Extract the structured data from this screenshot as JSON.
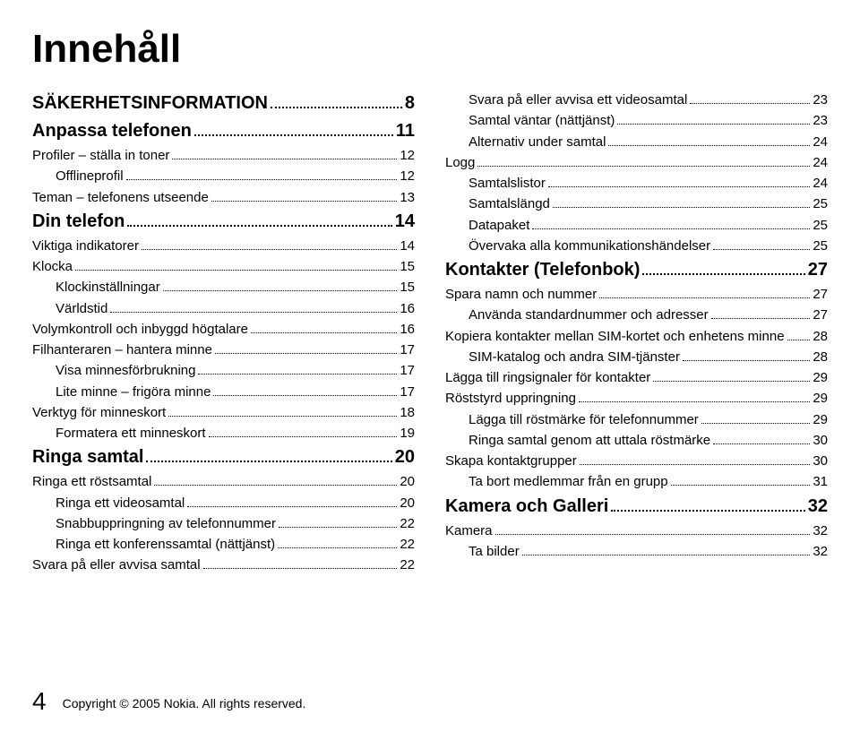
{
  "page_title": "Innehåll",
  "page_number": "4",
  "copyright": "Copyright © 2005 Nokia. All rights reserved.",
  "toc_left": [
    {
      "level": 0,
      "title": "SÄKERHETSINFORMATION",
      "page": "8"
    },
    {
      "level": 0,
      "title": "Anpassa telefonen",
      "page": "11"
    },
    {
      "level": 1,
      "title": "Profiler – ställa in toner",
      "page": "12"
    },
    {
      "level": 2,
      "title": "Offlineprofil",
      "page": "12"
    },
    {
      "level": 1,
      "title": "Teman – telefonens utseende",
      "page": "13"
    },
    {
      "level": 0,
      "title": "Din telefon",
      "page": "14"
    },
    {
      "level": 1,
      "title": "Viktiga indikatorer",
      "page": "14"
    },
    {
      "level": 1,
      "title": "Klocka",
      "page": "15"
    },
    {
      "level": 2,
      "title": "Klockinställningar",
      "page": "15"
    },
    {
      "level": 2,
      "title": "Världstid",
      "page": "16"
    },
    {
      "level": 1,
      "title": "Volymkontroll och inbyggd högtalare",
      "page": "16"
    },
    {
      "level": 1,
      "title": "Filhanteraren – hantera minne",
      "page": "17"
    },
    {
      "level": 2,
      "title": "Visa minnesförbrukning",
      "page": "17"
    },
    {
      "level": 2,
      "title": "Lite minne – frigöra minne",
      "page": "17"
    },
    {
      "level": 1,
      "title": "Verktyg för minneskort",
      "page": "18"
    },
    {
      "level": 2,
      "title": "Formatera ett minneskort",
      "page": "19"
    },
    {
      "level": 0,
      "title": "Ringa samtal",
      "page": "20"
    },
    {
      "level": 1,
      "title": "Ringa ett röstsamtal",
      "page": "20"
    },
    {
      "level": 2,
      "title": "Ringa ett videosamtal",
      "page": "20"
    },
    {
      "level": 2,
      "title": "Snabbuppringning av telefonnummer",
      "page": "22"
    },
    {
      "level": 2,
      "title": "Ringa ett konferenssamtal (nättjänst)",
      "page": "22"
    },
    {
      "level": 1,
      "title": "Svara på eller avvisa samtal",
      "page": "22"
    }
  ],
  "toc_right": [
    {
      "level": 2,
      "title": "Svara på eller avvisa ett videosamtal",
      "page": "23"
    },
    {
      "level": 2,
      "title": "Samtal väntar (nättjänst)",
      "page": "23"
    },
    {
      "level": 2,
      "title": "Alternativ under samtal",
      "page": "24"
    },
    {
      "level": 1,
      "title": "Logg",
      "page": "24"
    },
    {
      "level": 2,
      "title": "Samtalslistor",
      "page": "24"
    },
    {
      "level": 2,
      "title": "Samtalslängd",
      "page": "25"
    },
    {
      "level": 2,
      "title": "Datapaket",
      "page": "25"
    },
    {
      "level": 2,
      "title": "Övervaka alla kommunikationshändelser",
      "page": "25"
    },
    {
      "level": 0,
      "title": "Kontakter (Telefonbok)",
      "page": "27"
    },
    {
      "level": 1,
      "title": "Spara namn och nummer",
      "page": "27"
    },
    {
      "level": 2,
      "title": "Använda standardnummer och adresser",
      "page": "27"
    },
    {
      "level": 1,
      "title": "Kopiera kontakter mellan SIM-kortet och enhetens minne",
      "page": "28"
    },
    {
      "level": 2,
      "title": "SIM-katalog och andra SIM-tjänster",
      "page": "28"
    },
    {
      "level": 1,
      "title": "Lägga till ringsignaler för kontakter",
      "page": "29"
    },
    {
      "level": 1,
      "title": "Röststyrd uppringning",
      "page": "29"
    },
    {
      "level": 2,
      "title": "Lägga till röstmärke för telefonnummer",
      "page": "29"
    },
    {
      "level": 2,
      "title": "Ringa samtal genom att uttala röstmärke",
      "page": "30"
    },
    {
      "level": 1,
      "title": "Skapa kontaktgrupper",
      "page": "30"
    },
    {
      "level": 2,
      "title": "Ta bort medlemmar från en grupp",
      "page": "31"
    },
    {
      "level": 0,
      "title": "Kamera och Galleri",
      "page": "32"
    },
    {
      "level": 1,
      "title": "Kamera",
      "page": "32"
    },
    {
      "level": 2,
      "title": "Ta bilder",
      "page": "32"
    }
  ]
}
